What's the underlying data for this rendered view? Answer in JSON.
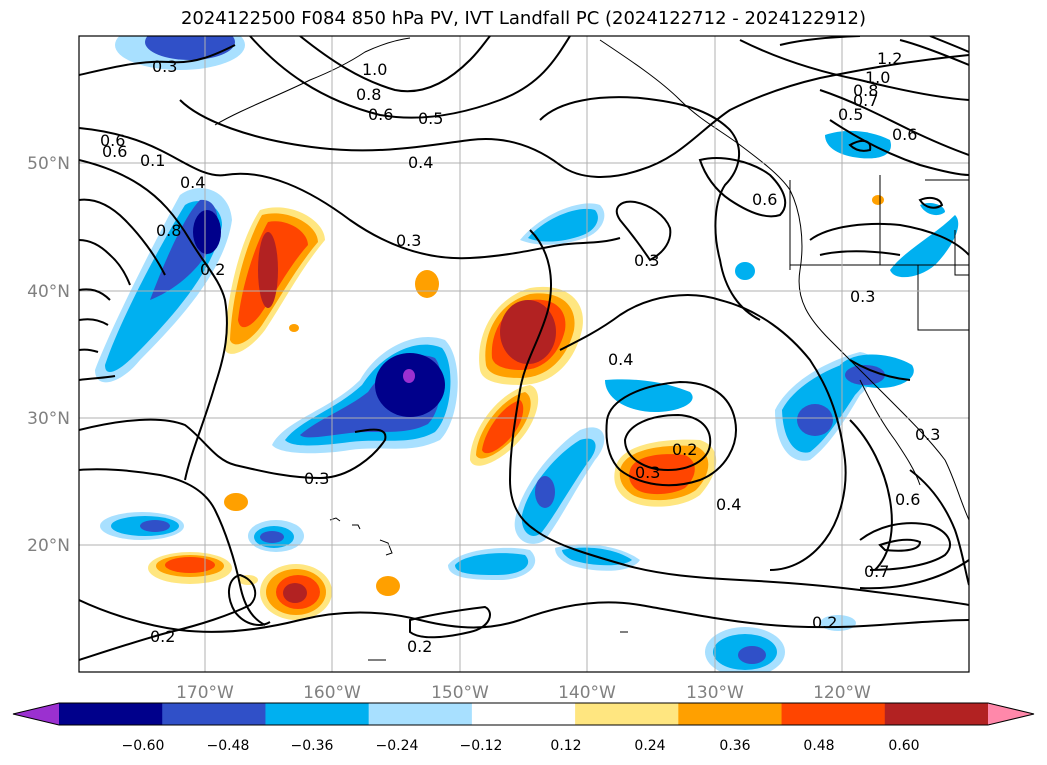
{
  "title": "2024122500 F084 850 hPa PV, IVT Landfall PC (2024122712 - 2024122912)",
  "map": {
    "lon_ticks": [
      "170°W",
      "160°W",
      "150°W",
      "140°W",
      "130°W",
      "120°W"
    ],
    "lat_ticks": [
      "50°N",
      "40°N",
      "30°N",
      "20°N"
    ],
    "contour_labels": [
      "0.3",
      "1.0",
      "0.8",
      "0.6",
      "0.5",
      "0.4",
      "0.3",
      "0.2",
      "0.1",
      "0.4",
      "0.8",
      "0.6",
      "0.3",
      "0.4",
      "0.3",
      "0.2",
      "0.3",
      "0.2",
      "0.4",
      "0.6",
      "0.7",
      "0.2",
      "1.2",
      "1.0",
      "0.8",
      "0.7",
      "0.5",
      "0.6",
      "0.6",
      "0.3",
      "0.6",
      "0.3",
      "0.2"
    ]
  },
  "colorbar": {
    "ticks": [
      "−0.60",
      "−0.48",
      "−0.36",
      "−0.24",
      "−0.12",
      "0.12",
      "0.24",
      "0.36",
      "0.48",
      "0.60"
    ],
    "colors": [
      "#9b30d0",
      "#00008b",
      "#3050c8",
      "#00b0f0",
      "#a8e0ff",
      "#ffffff",
      "#ffe680",
      "#ffa000",
      "#ff4500",
      "#b22222",
      "#ff88aa"
    ]
  }
}
